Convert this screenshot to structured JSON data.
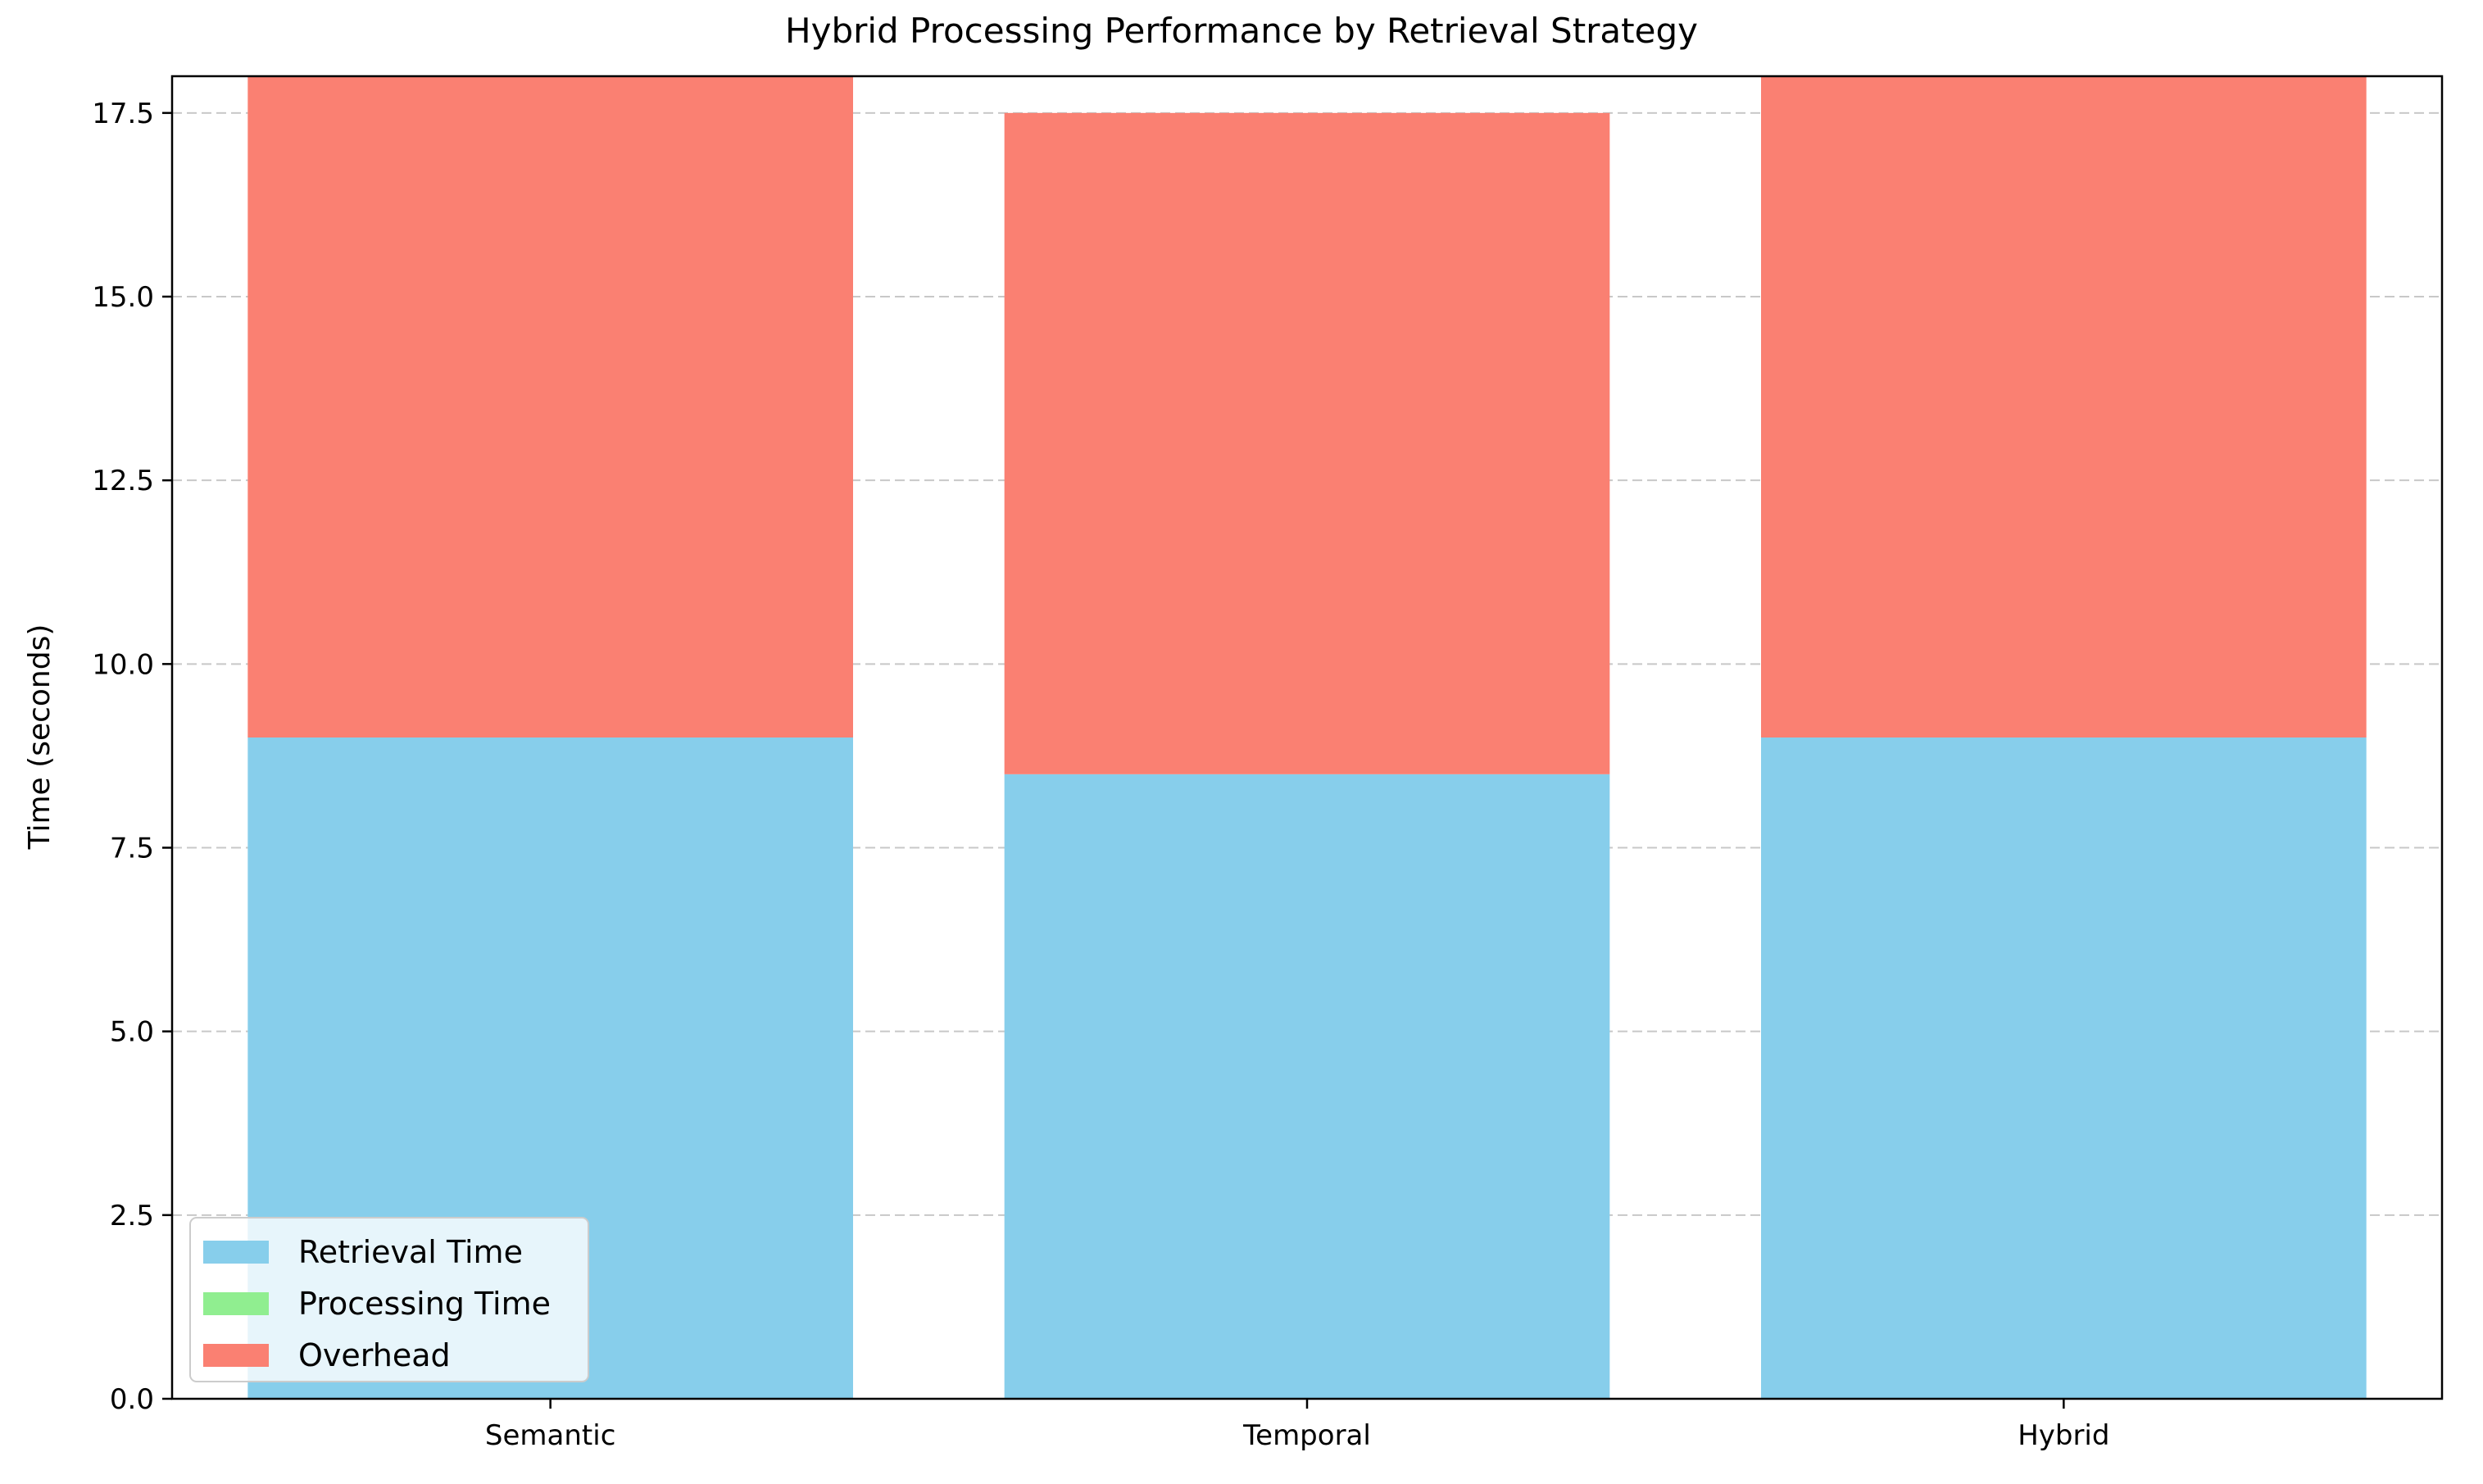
{
  "chart_data": {
    "type": "bar",
    "stacked": true,
    "title": "Hybrid Processing Performance by Retrieval Strategy",
    "xlabel": "",
    "ylabel": "Time (seconds)",
    "categories": [
      "Semantic",
      "Temporal",
      "Hybrid"
    ],
    "series": [
      {
        "name": "Retrieval Time",
        "color": "#87CEEB",
        "values": [
          9.0,
          8.5,
          9.0
        ]
      },
      {
        "name": "Processing Time",
        "color": "#90EE90",
        "values": [
          0.0,
          0.0,
          0.0
        ]
      },
      {
        "name": "Overhead",
        "color": "#FA8072",
        "values": [
          9.0,
          9.0,
          9.0
        ]
      }
    ],
    "ylim": [
      0,
      18.0
    ],
    "yticks": [
      0.0,
      2.5,
      5.0,
      7.5,
      10.0,
      12.5,
      15.0,
      17.5
    ],
    "ytick_labels": [
      "0.0",
      "2.5",
      "5.0",
      "7.5",
      "10.0",
      "12.5",
      "15.0",
      "17.5"
    ],
    "grid": "y-dashed",
    "legend_position": "lower-left"
  }
}
